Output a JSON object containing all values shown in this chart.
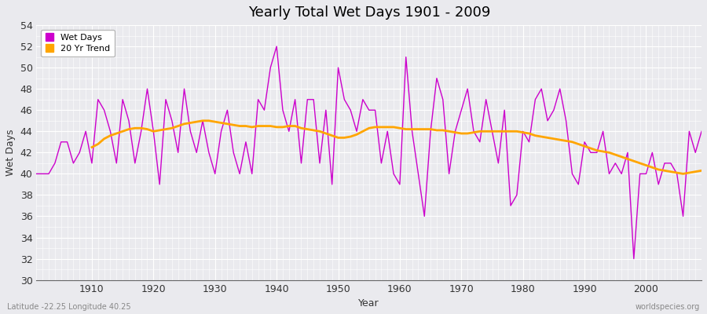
{
  "title": "Yearly Total Wet Days 1901 - 2009",
  "xlabel": "Year",
  "ylabel": "Wet Days",
  "lat_lon_label": "Latitude -22.25 Longitude 40.25",
  "watermark": "worldspecies.org",
  "ylim": [
    30,
    54
  ],
  "yticks": [
    30,
    32,
    34,
    36,
    38,
    40,
    42,
    44,
    46,
    48,
    50,
    52,
    54
  ],
  "line_color": "#CC00CC",
  "trend_color": "#FFA500",
  "bg_color": "#EAEAEE",
  "plot_bg_color": "#EAEAEE",
  "grid_color": "#FFFFFF",
  "years": [
    1901,
    1902,
    1903,
    1904,
    1905,
    1906,
    1907,
    1908,
    1909,
    1910,
    1911,
    1912,
    1913,
    1914,
    1915,
    1916,
    1917,
    1918,
    1919,
    1920,
    1921,
    1922,
    1923,
    1924,
    1925,
    1926,
    1927,
    1928,
    1929,
    1930,
    1931,
    1932,
    1933,
    1934,
    1935,
    1936,
    1937,
    1938,
    1939,
    1940,
    1941,
    1942,
    1943,
    1944,
    1945,
    1946,
    1947,
    1948,
    1949,
    1950,
    1951,
    1952,
    1953,
    1954,
    1955,
    1956,
    1957,
    1958,
    1959,
    1960,
    1961,
    1962,
    1963,
    1964,
    1965,
    1966,
    1967,
    1968,
    1969,
    1970,
    1971,
    1972,
    1973,
    1974,
    1975,
    1976,
    1977,
    1978,
    1979,
    1980,
    1981,
    1982,
    1983,
    1984,
    1985,
    1986,
    1987,
    1988,
    1989,
    1990,
    1991,
    1992,
    1993,
    1994,
    1995,
    1996,
    1997,
    1998,
    1999,
    2000,
    2001,
    2002,
    2003,
    2004,
    2005,
    2006,
    2007,
    2008,
    2009
  ],
  "wet_days": [
    40,
    40,
    40,
    41,
    43,
    43,
    41,
    42,
    44,
    41,
    47,
    46,
    44,
    41,
    47,
    45,
    41,
    44,
    48,
    44,
    39,
    47,
    45,
    42,
    48,
    44,
    42,
    45,
    42,
    40,
    44,
    46,
    42,
    40,
    43,
    40,
    47,
    46,
    50,
    52,
    46,
    44,
    47,
    41,
    47,
    47,
    41,
    46,
    39,
    50,
    47,
    46,
    44,
    47,
    46,
    46,
    41,
    44,
    40,
    39,
    51,
    44,
    40,
    36,
    44,
    49,
    47,
    40,
    44,
    46,
    48,
    44,
    43,
    47,
    44,
    41,
    46,
    37,
    38,
    44,
    43,
    47,
    48,
    45,
    46,
    48,
    45,
    40,
    39,
    43,
    42,
    42,
    44,
    40,
    41,
    40,
    42,
    32,
    40,
    40,
    42,
    39,
    41,
    41,
    40,
    36,
    44,
    42,
    44
  ],
  "trend_years": [
    1910,
    1911,
    1912,
    1913,
    1914,
    1915,
    1916,
    1917,
    1918,
    1919,
    1920,
    1921,
    1922,
    1923,
    1924,
    1925,
    1926,
    1927,
    1928,
    1929,
    1930,
    1931,
    1932,
    1933,
    1934,
    1935,
    1936,
    1937,
    1938,
    1939,
    1940,
    1941,
    1942,
    1943,
    1944,
    1945,
    1946,
    1947,
    1948,
    1949,
    1950,
    1951,
    1952,
    1953,
    1954,
    1955,
    1956,
    1957,
    1958,
    1959,
    1960,
    1961,
    1962,
    1963,
    1964,
    1965,
    1966,
    1967,
    1968,
    1969,
    1970,
    1971,
    1972,
    1973,
    1974,
    1975,
    1976,
    1977,
    1978,
    1979,
    1980,
    1981,
    1982,
    1983,
    1984,
    1985,
    1986,
    1987,
    1988,
    1989,
    1990,
    1991,
    1992,
    1993,
    1994,
    1995,
    1996,
    1997,
    1998,
    1999,
    2000,
    2001,
    2002,
    2003,
    2004,
    2005,
    2006,
    2007,
    2008,
    2009
  ],
  "trend_values": [
    42.5,
    42.8,
    43.3,
    43.6,
    43.8,
    44.0,
    44.2,
    44.3,
    44.3,
    44.2,
    44.0,
    44.1,
    44.2,
    44.3,
    44.5,
    44.7,
    44.8,
    44.9,
    45.0,
    45.0,
    44.9,
    44.8,
    44.7,
    44.6,
    44.5,
    44.5,
    44.4,
    44.5,
    44.5,
    44.5,
    44.4,
    44.4,
    44.5,
    44.5,
    44.3,
    44.2,
    44.1,
    44.0,
    43.8,
    43.6,
    43.4,
    43.4,
    43.5,
    43.7,
    44.0,
    44.3,
    44.4,
    44.4,
    44.4,
    44.4,
    44.3,
    44.2,
    44.2,
    44.2,
    44.2,
    44.2,
    44.1,
    44.1,
    44.0,
    43.9,
    43.8,
    43.8,
    43.9,
    44.0,
    44.0,
    44.0,
    44.0,
    44.0,
    44.0,
    44.0,
    43.9,
    43.8,
    43.6,
    43.5,
    43.4,
    43.3,
    43.2,
    43.1,
    43.0,
    42.8,
    42.6,
    42.4,
    42.2,
    42.1,
    42.0,
    41.8,
    41.6,
    41.4,
    41.2,
    41.0,
    40.8,
    40.6,
    40.4,
    40.3,
    40.2,
    40.1,
    40.0,
    40.1,
    40.2,
    40.3
  ]
}
